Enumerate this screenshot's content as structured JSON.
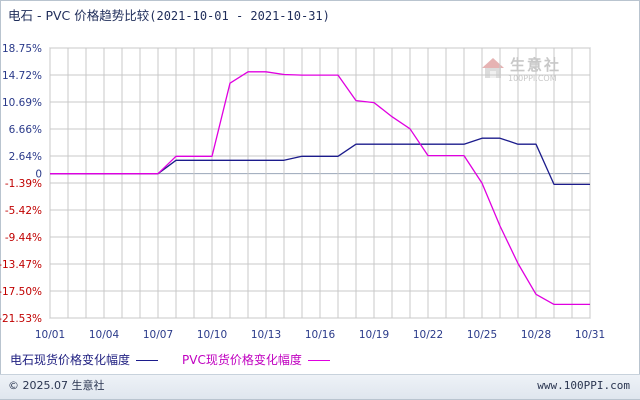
{
  "header": {
    "title_prefix": "电石 - PVC 价格趋势比较",
    "title_range": "(2021-10-01 - 2021-10-31)"
  },
  "watermark": {
    "name": "生意社",
    "url": "100PPI.COM"
  },
  "legend": {
    "series1_label": "电石现货价格变化幅度",
    "series2_label": "PVC现货价格变化幅度"
  },
  "footer": {
    "copyright": "© 2025.07 生意社",
    "site": "www.100PPI.com"
  },
  "colors": {
    "series1": "#1c1c8c",
    "series2": "#e000e0",
    "grid": "#c8c8c8",
    "axis_text": "#2a3a8a",
    "neg_text": "#c00000"
  },
  "chart_data": {
    "type": "line",
    "x_tick_labels": [
      "10/01",
      "10/04",
      "10/07",
      "10/10",
      "10/13",
      "10/16",
      "10/19",
      "10/22",
      "10/25",
      "10/28",
      "10/31"
    ],
    "y_tick_labels": [
      "18.75%",
      "14.72%",
      "10.69%",
      "6.66%",
      "2.64%",
      "0",
      "-1.39%",
      "-5.42%",
      "-9.44%",
      "-13.47%",
      "-17.50%",
      "-21.53%"
    ],
    "ylim": [
      -21.53,
      18.75
    ],
    "xlim": [
      "10/01",
      "10/31"
    ],
    "grid": true,
    "series": [
      {
        "name": "电石现货价格变化幅度",
        "x": [
          "10/01",
          "10/07",
          "10/08",
          "10/09",
          "10/10",
          "10/11",
          "10/12",
          "10/13",
          "10/14",
          "10/15",
          "10/16",
          "10/17",
          "10/18",
          "10/19",
          "10/20",
          "10/21",
          "10/22",
          "10/23",
          "10/24",
          "10/25",
          "10/26",
          "10/27",
          "10/28",
          "10/29",
          "10/30",
          "10/31"
        ],
        "values": [
          0,
          0,
          2.0,
          2.0,
          2.0,
          2.0,
          2.0,
          2.0,
          2.0,
          2.6,
          2.6,
          2.6,
          4.4,
          4.4,
          4.4,
          4.4,
          4.4,
          4.4,
          4.4,
          5.3,
          5.3,
          4.4,
          4.4,
          -1.6,
          -1.6,
          -1.6
        ]
      },
      {
        "name": "PVC现货价格变化幅度",
        "x": [
          "10/01",
          "10/07",
          "10/08",
          "10/09",
          "10/10",
          "10/11",
          "10/12",
          "10/13",
          "10/14",
          "10/15",
          "10/16",
          "10/17",
          "10/18",
          "10/19",
          "10/20",
          "10/21",
          "10/22",
          "10/23",
          "10/24",
          "10/25",
          "10/26",
          "10/27",
          "10/28",
          "10/29",
          "10/30",
          "10/31"
        ],
        "values": [
          0,
          0,
          2.6,
          2.6,
          2.6,
          13.5,
          15.2,
          15.2,
          14.8,
          14.7,
          14.7,
          14.7,
          10.9,
          10.6,
          8.5,
          6.7,
          2.7,
          2.7,
          2.7,
          -1.4,
          -7.8,
          -13.4,
          -18.0,
          -19.5,
          -19.5,
          -19.5
        ]
      }
    ]
  }
}
